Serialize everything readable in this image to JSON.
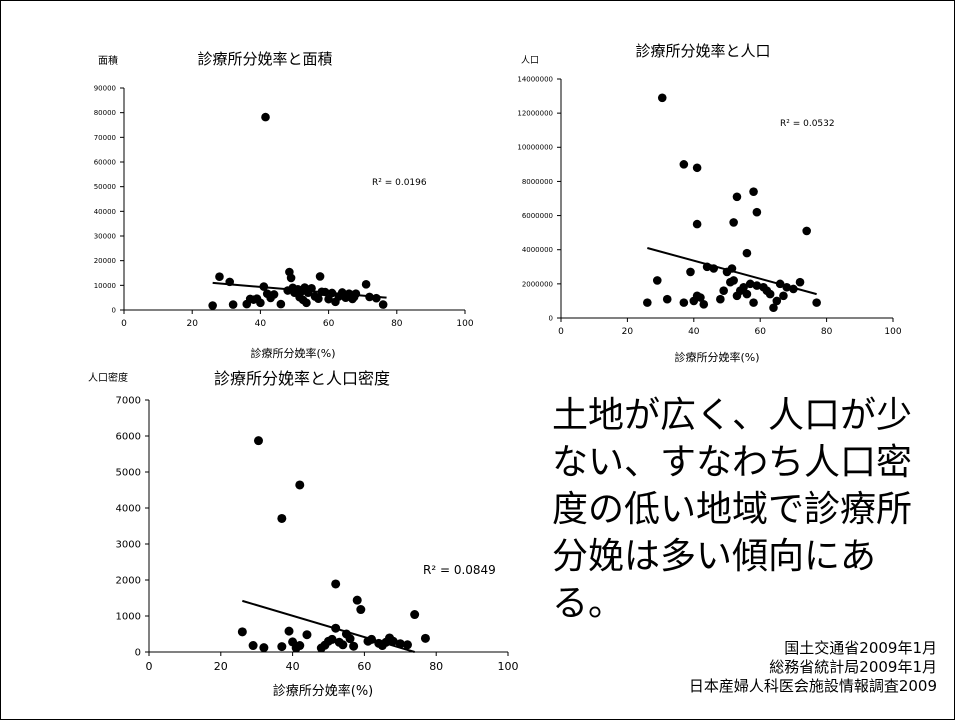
{
  "slide": {
    "summary": "土地が広く、人口が少ない、すなわち人口密度の低い地域で診療所分娩は多い傾向にある。",
    "sources": [
      "国土交通省2009年1月",
      "総務省統計局2009年1月",
      "日本産婦人科医会施設情報調査2009"
    ]
  },
  "chart_data": [
    {
      "type": "scatter",
      "title": "診療所分娩率と面積",
      "xlabel": "診療所分娩率(%)",
      "ylabel": "面積",
      "xlim": [
        0,
        100
      ],
      "ylim": [
        0,
        90000
      ],
      "xticks": [
        0,
        20,
        40,
        60,
        80,
        100
      ],
      "yticks": [
        0,
        10000,
        20000,
        30000,
        40000,
        50000,
        60000,
        70000,
        80000,
        90000
      ],
      "r2_label": "R² = 0.0196",
      "trendline": [
        [
          26,
          11000
        ],
        [
          77,
          5000
        ]
      ],
      "points": [
        [
          41.5,
          78200
        ],
        [
          26,
          1800
        ],
        [
          28,
          13500
        ],
        [
          31,
          11400
        ],
        [
          32,
          2200
        ],
        [
          36,
          2400
        ],
        [
          37,
          4500
        ],
        [
          38,
          4200
        ],
        [
          39,
          4600
        ],
        [
          40,
          2900
        ],
        [
          41,
          9500
        ],
        [
          42,
          6600
        ],
        [
          43,
          4900
        ],
        [
          44,
          6300
        ],
        [
          46,
          2400
        ],
        [
          48,
          7900
        ],
        [
          48.5,
          15400
        ],
        [
          49,
          13000
        ],
        [
          49.5,
          9000
        ],
        [
          50,
          7000
        ],
        [
          51,
          8400
        ],
        [
          51.5,
          5200
        ],
        [
          52,
          7500
        ],
        [
          52.5,
          4100
        ],
        [
          53,
          9100
        ],
        [
          53.5,
          2900
        ],
        [
          54,
          7000
        ],
        [
          55,
          8800
        ],
        [
          56,
          5500
        ],
        [
          57,
          4600
        ],
        [
          57.5,
          13600
        ],
        [
          58,
          7400
        ],
        [
          59,
          7300
        ],
        [
          60,
          4400
        ],
        [
          61,
          6900
        ],
        [
          62,
          3300
        ],
        [
          63,
          5500
        ],
        [
          64,
          7100
        ],
        [
          65,
          5000
        ],
        [
          66,
          6600
        ],
        [
          67,
          4500
        ],
        [
          67.5,
          5300
        ],
        [
          68,
          6600
        ],
        [
          71,
          10400
        ],
        [
          72,
          5300
        ],
        [
          74,
          4800
        ],
        [
          76,
          2200
        ]
      ]
    },
    {
      "type": "scatter",
      "title": "診療所分娩率と人口",
      "xlabel": "診療所分娩率(%)",
      "ylabel": "人口",
      "xlim": [
        0,
        100
      ],
      "ylim": [
        0,
        14000000
      ],
      "xticks": [
        0,
        20,
        40,
        60,
        80,
        100
      ],
      "yticks": [
        0,
        2000000,
        4000000,
        6000000,
        8000000,
        10000000,
        12000000,
        14000000
      ],
      "r2_label": "R² = 0.0532",
      "trendline": [
        [
          26,
          4100000
        ],
        [
          77,
          1400000
        ]
      ],
      "points": [
        [
          30.5,
          12900000
        ],
        [
          37,
          9000000
        ],
        [
          41,
          8800000
        ],
        [
          53,
          7100000
        ],
        [
          58,
          7400000
        ],
        [
          59,
          6200000
        ],
        [
          74,
          5100000
        ],
        [
          41,
          5500000
        ],
        [
          52,
          5600000
        ],
        [
          56,
          3800000
        ],
        [
          26,
          900000
        ],
        [
          29,
          2200000
        ],
        [
          32,
          1100000
        ],
        [
          37,
          900000
        ],
        [
          39,
          2700000
        ],
        [
          40,
          1000000
        ],
        [
          41,
          1300000
        ],
        [
          42,
          1200000
        ],
        [
          43,
          800000
        ],
        [
          44,
          3000000
        ],
        [
          46,
          2900000
        ],
        [
          48,
          1100000
        ],
        [
          49,
          1600000
        ],
        [
          50,
          2700000
        ],
        [
          51,
          2100000
        ],
        [
          51.5,
          2900000
        ],
        [
          52,
          2200000
        ],
        [
          53,
          1300000
        ],
        [
          54,
          1600000
        ],
        [
          55,
          1800000
        ],
        [
          56,
          1400000
        ],
        [
          57,
          2000000
        ],
        [
          58,
          900000
        ],
        [
          59,
          1900000
        ],
        [
          61,
          1800000
        ],
        [
          62,
          1600000
        ],
        [
          63,
          1400000
        ],
        [
          64,
          600000
        ],
        [
          65,
          1000000
        ],
        [
          66,
          2000000
        ],
        [
          67,
          1300000
        ],
        [
          68,
          1800000
        ],
        [
          70,
          1700000
        ],
        [
          72,
          2100000
        ],
        [
          77,
          900000
        ]
      ]
    },
    {
      "type": "scatter",
      "title": "診療所分娩率と人口密度",
      "xlabel": "診療所分娩率(%)",
      "ylabel": "人口密度",
      "xlim": [
        0,
        100
      ],
      "ylim": [
        0,
        7000
      ],
      "xticks": [
        0,
        20,
        40,
        60,
        80,
        100
      ],
      "yticks": [
        0,
        1000,
        2000,
        3000,
        4000,
        5000,
        6000,
        7000
      ],
      "r2_label": "R² = 0.0849",
      "trendline": [
        [
          26,
          1420
        ],
        [
          74,
          0
        ]
      ],
      "points": [
        [
          30.5,
          5870
        ],
        [
          42,
          4640
        ],
        [
          37,
          3710
        ],
        [
          52,
          1890
        ],
        [
          58,
          1440
        ],
        [
          59,
          1180
        ],
        [
          74,
          1040
        ],
        [
          26,
          560
        ],
        [
          29,
          180
        ],
        [
          32,
          120
        ],
        [
          37,
          150
        ],
        [
          39,
          580
        ],
        [
          40,
          280
        ],
        [
          41,
          110
        ],
        [
          42,
          180
        ],
        [
          44,
          480
        ],
        [
          48,
          110
        ],
        [
          49,
          190
        ],
        [
          50,
          300
        ],
        [
          51,
          350
        ],
        [
          52,
          660
        ],
        [
          53,
          270
        ],
        [
          54,
          200
        ],
        [
          55,
          500
        ],
        [
          56,
          370
        ],
        [
          57,
          160
        ],
        [
          61,
          300
        ],
        [
          62,
          350
        ],
        [
          64,
          240
        ],
        [
          65,
          180
        ],
        [
          66,
          270
        ],
        [
          67,
          390
        ],
        [
          68,
          300
        ],
        [
          70,
          230
        ],
        [
          72,
          200
        ],
        [
          77,
          380
        ]
      ]
    }
  ]
}
